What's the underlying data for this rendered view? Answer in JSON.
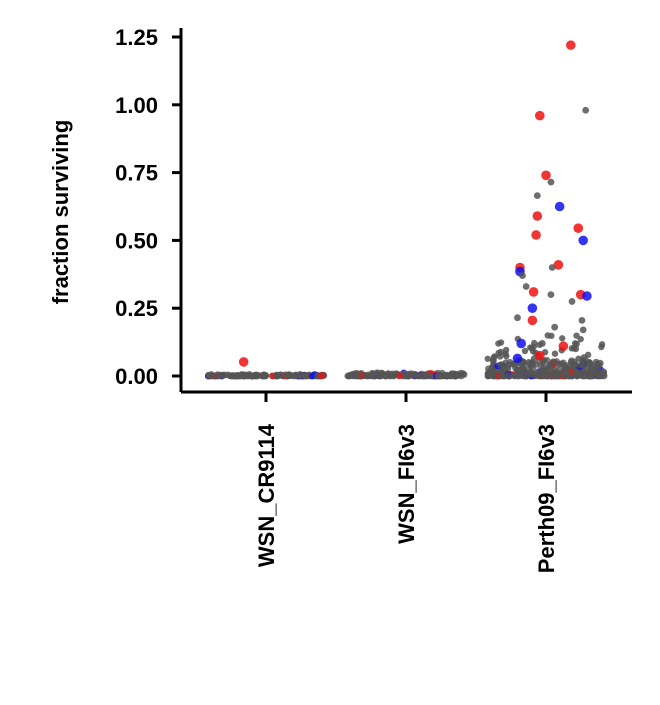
{
  "chart_data": {
    "type": "scatter",
    "title": "",
    "xlabel": "",
    "ylabel": "fraction surviving",
    "ylim": [
      -0.06,
      1.28
    ],
    "yticks": [
      "0.00",
      "0.25",
      "0.50",
      "0.75",
      "1.00",
      "1.25"
    ],
    "grid": false,
    "legend": "none",
    "categories": [
      "WSN_CR9114",
      "WSN_FI6v3",
      "Perth09_FI6v3"
    ],
    "colors": {
      "grey": "#555555",
      "red": "#ee1111",
      "blue": "#1111ee"
    },
    "points": [
      {
        "category": "WSN_CR9114",
        "offset": -0.18,
        "y": 0.052,
        "color": "red"
      },
      {
        "category": "Perth09_FI6v3",
        "offset": 0.2,
        "y": 1.22,
        "color": "red"
      },
      {
        "category": "Perth09_FI6v3",
        "offset": -0.05,
        "y": 0.96,
        "color": "red"
      },
      {
        "category": "Perth09_FI6v3",
        "offset": 0.0,
        "y": 0.74,
        "color": "red"
      },
      {
        "category": "Perth09_FI6v3",
        "offset": -0.07,
        "y": 0.59,
        "color": "red"
      },
      {
        "category": "Perth09_FI6v3",
        "offset": -0.08,
        "y": 0.52,
        "color": "red"
      },
      {
        "category": "Perth09_FI6v3",
        "offset": 0.26,
        "y": 0.545,
        "color": "red"
      },
      {
        "category": "Perth09_FI6v3",
        "offset": 0.1,
        "y": 0.41,
        "color": "red"
      },
      {
        "category": "Perth09_FI6v3",
        "offset": -0.21,
        "y": 0.4,
        "color": "red"
      },
      {
        "category": "Perth09_FI6v3",
        "offset": -0.1,
        "y": 0.31,
        "color": "red"
      },
      {
        "category": "Perth09_FI6v3",
        "offset": 0.28,
        "y": 0.3,
        "color": "red"
      },
      {
        "category": "Perth09_FI6v3",
        "offset": -0.11,
        "y": 0.205,
        "color": "red"
      },
      {
        "category": "Perth09_FI6v3",
        "offset": 0.14,
        "y": 0.11,
        "color": "red"
      },
      {
        "category": "Perth09_FI6v3",
        "offset": -0.05,
        "y": 0.075,
        "color": "red"
      },
      {
        "category": "Perth09_FI6v3",
        "offset": 0.11,
        "y": 0.625,
        "color": "blue"
      },
      {
        "category": "Perth09_FI6v3",
        "offset": 0.3,
        "y": 0.5,
        "color": "blue"
      },
      {
        "category": "Perth09_FI6v3",
        "offset": -0.21,
        "y": 0.385,
        "color": "blue"
      },
      {
        "category": "Perth09_FI6v3",
        "offset": 0.33,
        "y": 0.295,
        "color": "blue"
      },
      {
        "category": "Perth09_FI6v3",
        "offset": -0.11,
        "y": 0.25,
        "color": "blue"
      },
      {
        "category": "Perth09_FI6v3",
        "offset": -0.2,
        "y": 0.12,
        "color": "blue"
      },
      {
        "category": "Perth09_FI6v3",
        "offset": -0.23,
        "y": 0.065,
        "color": "blue"
      },
      {
        "category": "Perth09_FI6v3",
        "offset": 0.32,
        "y": 0.98,
        "color": "grey"
      },
      {
        "category": "Perth09_FI6v3",
        "offset": 0.04,
        "y": 0.715,
        "color": "grey"
      },
      {
        "category": "Perth09_FI6v3",
        "offset": -0.07,
        "y": 0.665,
        "color": "grey"
      },
      {
        "category": "Perth09_FI6v3",
        "offset": -0.19,
        "y": 0.37,
        "color": "grey"
      },
      {
        "category": "Perth09_FI6v3",
        "offset": -0.23,
        "y": 0.215,
        "color": "grey"
      },
      {
        "category": "Perth09_FI6v3",
        "offset": 0.04,
        "y": 0.3,
        "color": "grey"
      },
      {
        "category": "Perth09_FI6v3",
        "offset": 0.29,
        "y": 0.205,
        "color": "grey"
      },
      {
        "category": "Perth09_FI6v3",
        "offset": 0.21,
        "y": 0.275,
        "color": "grey"
      },
      {
        "category": "Perth09_FI6v3",
        "offset": 0.05,
        "y": 0.4,
        "color": "grey"
      },
      {
        "category": "Perth09_FI6v3",
        "offset": 0.3,
        "y": 0.17,
        "color": "grey"
      },
      {
        "category": "Perth09_FI6v3",
        "offset": -0.16,
        "y": 0.33,
        "color": "grey"
      },
      {
        "category": "Perth09_FI6v3",
        "offset": 0.07,
        "y": 0.18,
        "color": "grey"
      },
      {
        "category": "Perth09_FI6v3",
        "offset": -0.03,
        "y": 0.12,
        "color": "grey"
      },
      {
        "category": "Perth09_FI6v3",
        "offset": 0.24,
        "y": 0.1,
        "color": "grey"
      }
    ]
  }
}
